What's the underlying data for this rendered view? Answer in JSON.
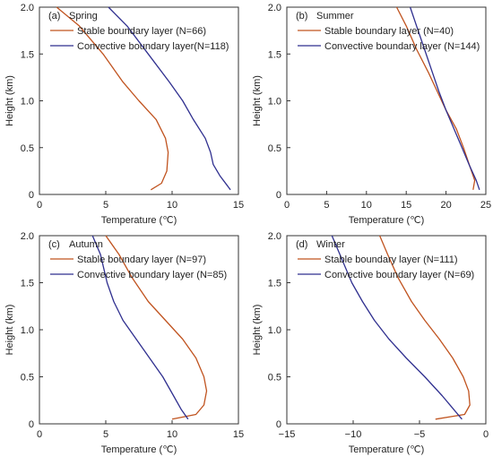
{
  "figure": {
    "colors": {
      "stable": "#c0531f",
      "convective": "#2f2f8f"
    }
  },
  "chart_data": [
    {
      "type": "line",
      "panel_label": "(a)",
      "panel_name": "Spring",
      "xlabel": "Temperature (℃)",
      "ylabel": "Height (km)",
      "xlim": [
        0,
        15
      ],
      "ylim": [
        0,
        2
      ],
      "xticks": [
        0,
        5,
        10,
        15
      ],
      "yticks": [
        0,
        0.5,
        1.0,
        1.5,
        2.0
      ],
      "xtick_labels": [
        "0",
        "5",
        "10",
        "15"
      ],
      "ytick_labels": [
        "0",
        "0.5",
        "1.0",
        "1.5",
        "2.0"
      ],
      "legend_location": "top-left",
      "series": [
        {
          "name": "Stable boundary layer (N=66)",
          "color": "#c0531f",
          "points": [
            [
              8.4,
              0.05
            ],
            [
              9.2,
              0.12
            ],
            [
              9.6,
              0.25
            ],
            [
              9.7,
              0.45
            ],
            [
              9.5,
              0.6
            ],
            [
              8.8,
              0.8
            ],
            [
              7.5,
              1.0
            ],
            [
              6.3,
              1.2
            ],
            [
              4.8,
              1.5
            ],
            [
              3.0,
              1.8
            ],
            [
              1.3,
              2.0
            ]
          ]
        },
        {
          "name": "Convective boundary layer(N=118)",
          "color": "#2f2f8f",
          "points": [
            [
              14.4,
              0.05
            ],
            [
              13.6,
              0.2
            ],
            [
              13.1,
              0.32
            ],
            [
              12.9,
              0.45
            ],
            [
              12.5,
              0.6
            ],
            [
              11.6,
              0.8
            ],
            [
              10.8,
              1.0
            ],
            [
              9.8,
              1.2
            ],
            [
              8.2,
              1.5
            ],
            [
              6.6,
              1.8
            ],
            [
              5.2,
              2.0
            ]
          ]
        }
      ]
    },
    {
      "type": "line",
      "panel_label": "(b)",
      "panel_name": "Summer",
      "xlabel": "Temperature (℃)",
      "ylabel": "Height (km)",
      "xlim": [
        0,
        25
      ],
      "ylim": [
        0,
        2
      ],
      "xticks": [
        0,
        5,
        10,
        15,
        20,
        25
      ],
      "yticks": [
        0,
        0.5,
        1.0,
        1.5,
        2.0
      ],
      "xtick_labels": [
        "0",
        "5",
        "10",
        "15",
        "20",
        "25"
      ],
      "ytick_labels": [
        "0",
        "0.5",
        "1.0",
        "1.5",
        "2.0"
      ],
      "legend_location": "top-left",
      "series": [
        {
          "name": "Stable boundary layer (N=40)",
          "color": "#c0531f",
          "points": [
            [
              23.4,
              0.05
            ],
            [
              23.6,
              0.15
            ],
            [
              23.0,
              0.3
            ],
            [
              22.2,
              0.5
            ],
            [
              21.3,
              0.7
            ],
            [
              20.0,
              0.9
            ],
            [
              18.9,
              1.1
            ],
            [
              17.8,
              1.3
            ],
            [
              16.3,
              1.55
            ],
            [
              15.0,
              1.8
            ],
            [
              13.8,
              2.0
            ]
          ]
        },
        {
          "name": "Convective boundary layer (N=144)",
          "color": "#2f2f8f",
          "points": [
            [
              24.2,
              0.05
            ],
            [
              23.8,
              0.15
            ],
            [
              23.0,
              0.3
            ],
            [
              22.0,
              0.5
            ],
            [
              21.0,
              0.7
            ],
            [
              20.0,
              0.9
            ],
            [
              19.1,
              1.1
            ],
            [
              18.3,
              1.3
            ],
            [
              17.3,
              1.55
            ],
            [
              16.3,
              1.8
            ],
            [
              15.5,
              2.0
            ]
          ]
        }
      ]
    },
    {
      "type": "line",
      "panel_label": "(c)",
      "panel_name": "Autumn",
      "xlabel": "Temperature (℃)",
      "ylabel": "Height (km)",
      "xlim": [
        0,
        15
      ],
      "ylim": [
        0,
        2
      ],
      "xticks": [
        0,
        5,
        10,
        15
      ],
      "yticks": [
        0,
        0.5,
        1.0,
        1.5,
        2.0
      ],
      "xtick_labels": [
        "0",
        "5",
        "10",
        "15"
      ],
      "ytick_labels": [
        "0",
        "0.5",
        "1.0",
        "1.5",
        "2.0"
      ],
      "legend_location": "top-left",
      "series": [
        {
          "name": "Stable boundary layer (N=97)",
          "color": "#c0531f",
          "points": [
            [
              10.0,
              0.05
            ],
            [
              11.8,
              0.1
            ],
            [
              12.4,
              0.2
            ],
            [
              12.6,
              0.35
            ],
            [
              12.4,
              0.5
            ],
            [
              11.8,
              0.7
            ],
            [
              10.8,
              0.9
            ],
            [
              9.5,
              1.1
            ],
            [
              8.2,
              1.3
            ],
            [
              7.0,
              1.55
            ],
            [
              6.0,
              1.8
            ],
            [
              5.0,
              2.0
            ]
          ]
        },
        {
          "name": "Convective boundary layer (N=85)",
          "color": "#2f2f8f",
          "points": [
            [
              11.2,
              0.05
            ],
            [
              10.7,
              0.15
            ],
            [
              10.1,
              0.3
            ],
            [
              9.3,
              0.5
            ],
            [
              8.3,
              0.7
            ],
            [
              7.3,
              0.9
            ],
            [
              6.3,
              1.1
            ],
            [
              5.6,
              1.3
            ],
            [
              5.1,
              1.5
            ],
            [
              4.6,
              1.8
            ],
            [
              4.0,
              2.0
            ]
          ]
        }
      ]
    },
    {
      "type": "line",
      "panel_label": "(d)",
      "panel_name": "Winter",
      "xlabel": "Temperature (℃)",
      "ylabel": "Height (km)",
      "xlim": [
        -15,
        0
      ],
      "ylim": [
        0,
        2
      ],
      "xticks": [
        -15,
        -10,
        -5,
        0
      ],
      "yticks": [
        0,
        0.5,
        1.0,
        1.5,
        2.0
      ],
      "xtick_labels": [
        "−15",
        "−10",
        "−5",
        "0"
      ],
      "ytick_labels": [
        "0",
        "0.5",
        "1.0",
        "1.5",
        "2.0"
      ],
      "legend_location": "top-left",
      "series": [
        {
          "name": "Stable boundary layer (N=111)",
          "color": "#c0531f",
          "points": [
            [
              -3.8,
              0.05
            ],
            [
              -1.6,
              0.1
            ],
            [
              -1.2,
              0.2
            ],
            [
              -1.3,
              0.35
            ],
            [
              -1.7,
              0.5
            ],
            [
              -2.5,
              0.7
            ],
            [
              -3.5,
              0.9
            ],
            [
              -4.6,
              1.1
            ],
            [
              -5.6,
              1.3
            ],
            [
              -6.6,
              1.55
            ],
            [
              -7.4,
              1.8
            ],
            [
              -8.0,
              2.0
            ]
          ]
        },
        {
          "name": "Convective boundary layer (N=69)",
          "color": "#2f2f8f",
          "points": [
            [
              -1.8,
              0.05
            ],
            [
              -2.4,
              0.15
            ],
            [
              -3.3,
              0.3
            ],
            [
              -4.6,
              0.5
            ],
            [
              -6.0,
              0.7
            ],
            [
              -7.3,
              0.9
            ],
            [
              -8.4,
              1.1
            ],
            [
              -9.3,
              1.3
            ],
            [
              -10.1,
              1.5
            ],
            [
              -11.0,
              1.8
            ],
            [
              -11.6,
              2.0
            ]
          ]
        }
      ]
    }
  ]
}
